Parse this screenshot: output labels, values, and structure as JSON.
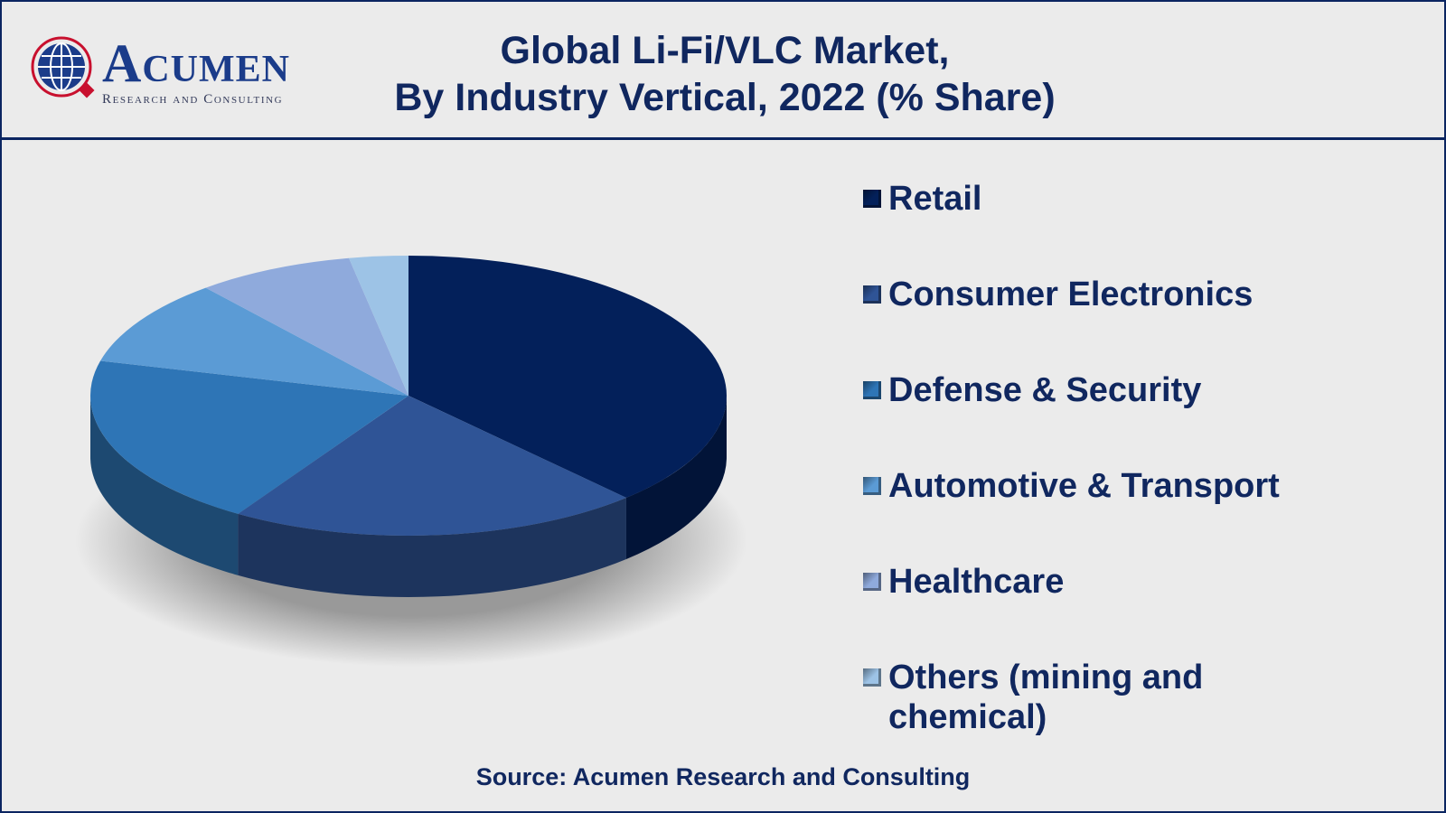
{
  "header": {
    "logo_name": "Acumen",
    "logo_sub": "Research and Consulting",
    "title_line1": "Global Li-Fi/VLC Market,",
    "title_line2": "By Industry Vertical, 2022 (% Share)"
  },
  "source": "Source: Acumen Research and Consulting",
  "chart_data": {
    "type": "pie",
    "style": "3d",
    "title": "Global Li-Fi/VLC Market, By Industry Vertical, 2022 (% Share)",
    "legend_position": "right",
    "series": [
      {
        "name": "Retail",
        "value": 38,
        "color": "#03205a"
      },
      {
        "name": "Consumer Electronics",
        "value": 21,
        "color": "#2f5496"
      },
      {
        "name": "Defense & Security",
        "value": 20,
        "color": "#2e75b6"
      },
      {
        "name": "Automotive & Transport",
        "value": 10,
        "color": "#5b9bd5"
      },
      {
        "name": "Healthcare",
        "value": 8,
        "color": "#8faadc"
      },
      {
        "name": "Others (mining and chemical)",
        "value": 3,
        "color": "#9dc3e6"
      }
    ]
  }
}
